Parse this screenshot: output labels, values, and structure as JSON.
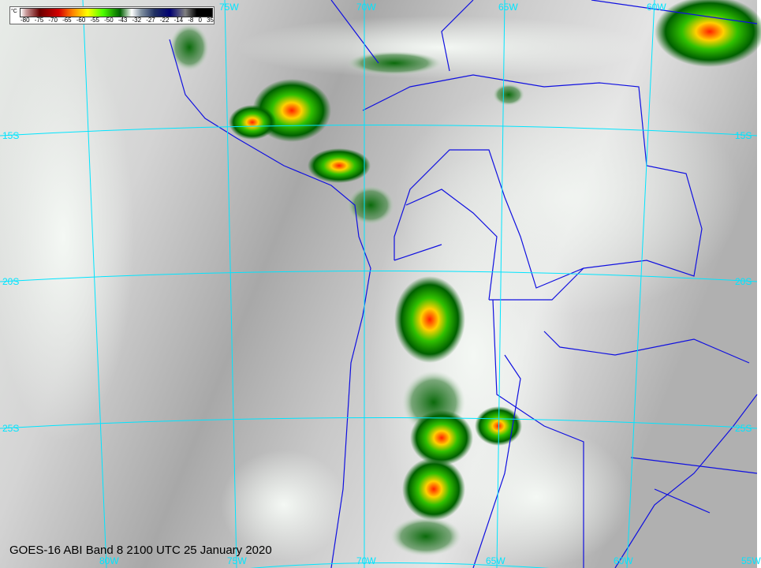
{
  "caption": "GOES-16 ABI Band 8 2100 UTC 25 January 2020",
  "colorbar": {
    "unit": "°C",
    "ticks": [
      "-80",
      "-75",
      "-70",
      "-65",
      "-60",
      "-55",
      "-50",
      "-43",
      "-32",
      "-27",
      "-22",
      "-14",
      "-8",
      "0",
      "35"
    ]
  },
  "grid_labels": {
    "top": [
      "75W",
      "70W",
      "65W",
      "60W"
    ],
    "bottom": [
      "80W",
      "75W",
      "70W",
      "65W",
      "60W",
      "55W"
    ],
    "left": [
      "15S",
      "20S",
      "25S"
    ],
    "right": [
      "15S",
      "20S",
      "25S"
    ]
  },
  "colors": {
    "grid": "#00e5ff",
    "borders": "#1010e0",
    "cloud_cold": "#008000"
  }
}
